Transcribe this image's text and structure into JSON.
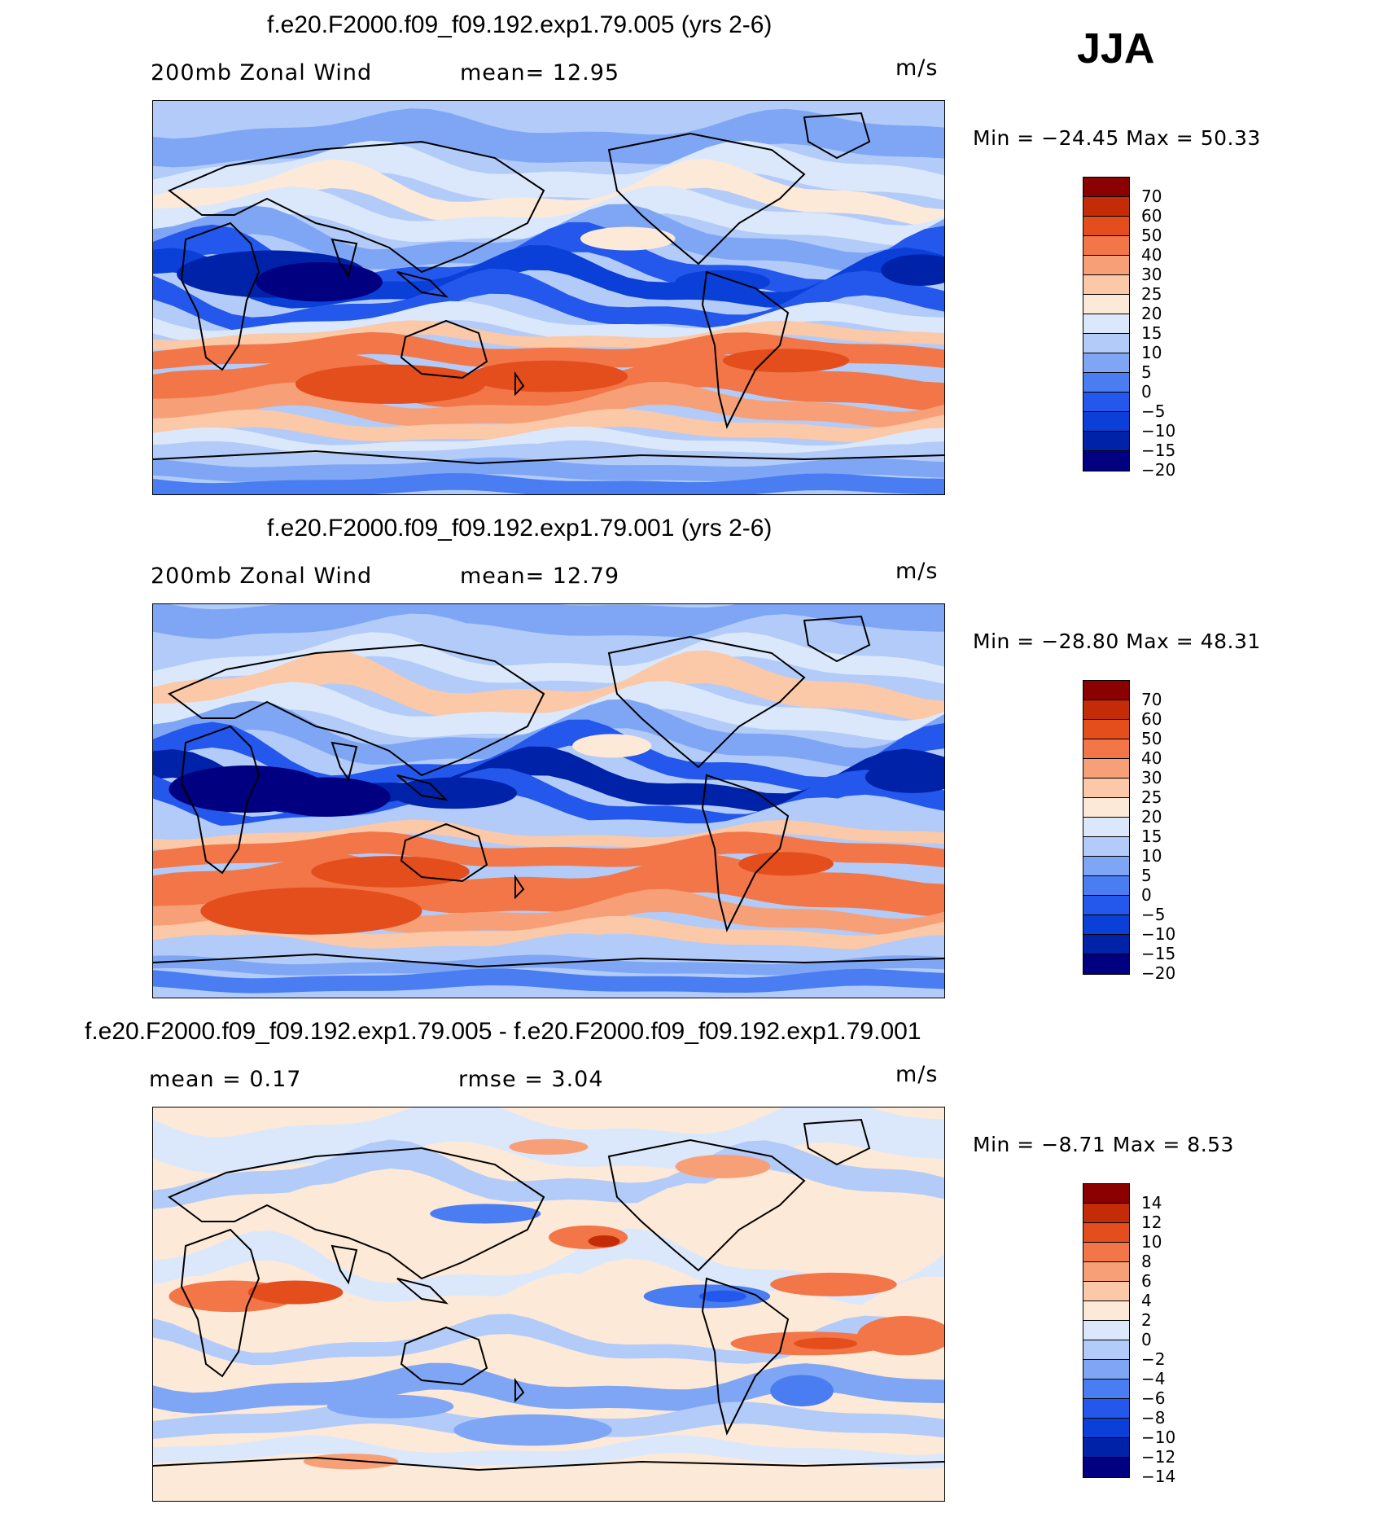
{
  "season": "JJA",
  "colors": {
    "abs_palette": [
      "#000080",
      "#0022a8",
      "#0a3fd8",
      "#2458ec",
      "#4a7df2",
      "#7fa6f5",
      "#b2cbf8",
      "#dbe8fc",
      "#fde9d8",
      "#fbc8a8",
      "#f7a077",
      "#f27648",
      "#e44d1c",
      "#c42c08",
      "#8b0000"
    ],
    "diff_palette": [
      "#000080",
      "#0022a8",
      "#0a3fd8",
      "#2458ec",
      "#4a7df2",
      "#7fa6f5",
      "#b2cbf8",
      "#dbe8fc",
      "#fde9d8",
      "#fbc8a8",
      "#f7a077",
      "#f27648",
      "#e44d1c",
      "#c42c08",
      "#8b0000"
    ]
  },
  "panels": [
    {
      "title": "f.e20.F2000.f09_f09.192.exp1.79.005 (yrs 2-6)",
      "left": "200mb Zonal Wind",
      "center": "mean=   12.95",
      "units": "m/s",
      "minmax": "Min  =  −24.45  Max  =    50.33"
    },
    {
      "title": "f.e20.F2000.f09_f09.192.exp1.79.001 (yrs 2-6)",
      "left": "200mb Zonal Wind",
      "center": "mean=   12.79",
      "units": "m/s",
      "minmax": "Min  =  −28.80  Max  =    48.31"
    },
    {
      "title": "f.e20.F2000.f09_f09.192.exp1.79.005 - f.e20.F2000.f09_f09.192.exp1.79.001",
      "left": "mean  =     0.17",
      "center": "rmse  =     3.04",
      "units": "m/s",
      "minmax": "Min  =     −8.71  Max  =     8.53"
    }
  ],
  "chart_data": [
    {
      "type": "heatmap",
      "title": "f.e20.F2000.f09_f09.192.exp1.79.005 (yrs 2-6)",
      "variable": "200mb Zonal Wind",
      "units": "m/s",
      "mean": 12.95,
      "min": -24.45,
      "max": 50.33,
      "levels": [
        -20,
        -15,
        -10,
        -5,
        0,
        5,
        10,
        15,
        20,
        25,
        30,
        40,
        50,
        60,
        70
      ],
      "level_labels": [
        "70",
        "60",
        "50",
        "40",
        "30",
        "25",
        "20",
        "15",
        "10",
        "5",
        "0",
        "−5",
        "−10",
        "−15",
        "−20"
      ]
    },
    {
      "type": "heatmap",
      "title": "f.e20.F2000.f09_f09.192.exp1.79.001 (yrs 2-6)",
      "variable": "200mb Zonal Wind",
      "units": "m/s",
      "mean": 12.79,
      "min": -28.8,
      "max": 48.31,
      "levels": [
        -20,
        -15,
        -10,
        -5,
        0,
        5,
        10,
        15,
        20,
        25,
        30,
        40,
        50,
        60,
        70
      ],
      "level_labels": [
        "70",
        "60",
        "50",
        "40",
        "30",
        "25",
        "20",
        "15",
        "10",
        "5",
        "0",
        "−5",
        "−10",
        "−15",
        "−20"
      ]
    },
    {
      "type": "heatmap",
      "title": "f.e20.F2000.f09_f09.192.exp1.79.005 - f.e20.F2000.f09_f09.192.exp1.79.001",
      "units": "m/s",
      "mean": 0.17,
      "rmse": 3.04,
      "min": -8.71,
      "max": 8.53,
      "levels": [
        -14,
        -12,
        -10,
        -8,
        -6,
        -4,
        -2,
        0,
        2,
        4,
        6,
        8,
        10,
        12,
        14
      ],
      "level_labels": [
        "14",
        "12",
        "10",
        "8",
        "6",
        "4",
        "2",
        "0",
        "−2",
        "−4",
        "−6",
        "−8",
        "−10",
        "−12",
        "−14"
      ]
    }
  ]
}
